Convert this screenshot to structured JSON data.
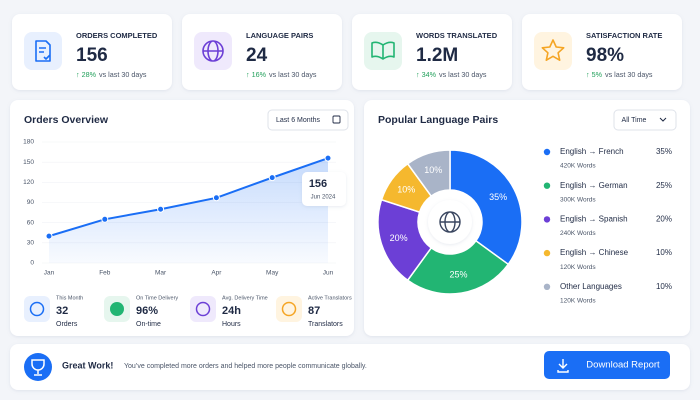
{
  "header_cards": [
    {
      "label": "ORDERS COMPLETED",
      "value": "156",
      "change": "↑ 28%",
      "compare": "vs last 30 days"
    },
    {
      "label": "LANGUAGE PAIRS",
      "value": "24",
      "change": "↑ 16%",
      "compare": "vs last 30 days"
    },
    {
      "label": "WORDS TRANSLATED",
      "value": "1.2M",
      "change": "↑ 34%",
      "compare": "vs last 30 days"
    },
    {
      "label": "SATISFACTION RATE",
      "value": "98%",
      "change": "↑ 5%",
      "compare": "vs last 30 days"
    }
  ],
  "chart_data": [
    {
      "type": "line",
      "title": "Orders Overview",
      "filter": "Last 6 Months",
      "categories": [
        "Jan",
        "Feb",
        "Mar",
        "Apr",
        "May",
        "Jun"
      ],
      "values": [
        40,
        65,
        80,
        97,
        127,
        156
      ],
      "color": "#1a6ef5",
      "ylim": [
        0,
        180
      ],
      "yticks": [
        0,
        30,
        60,
        90,
        120,
        150,
        180
      ],
      "grid": true,
      "tooltip_date": "Jun 2024"
    },
    {
      "type": "pie",
      "title": "Popular Language Pairs",
      "filter": "All Time",
      "categories": [
        "English → French",
        "English → German",
        "English → Spanish",
        "English → Chinese",
        "Other Languages"
      ],
      "values": [
        35,
        25,
        20,
        10,
        10
      ],
      "value_labels": [
        "35%",
        "25%",
        "20%",
        "10%",
        "10%"
      ],
      "colors": [
        "#1a6ef5",
        "#22b573",
        "#6c3fd6",
        "#f5b82e",
        "#a9b4c8"
      ],
      "details": [
        "420K Words",
        "300K Words",
        "240K Words",
        "120K Words",
        "120K Words"
      ]
    }
  ],
  "summary": [
    {
      "label": "This Month",
      "value": "32",
      "unit": "Orders"
    },
    {
      "label": "On Time Delivery",
      "value": "96%",
      "unit": "On-time"
    },
    {
      "label": "Avg. Delivery Time",
      "value": "24h",
      "unit": "Hours"
    },
    {
      "label": "Active Translators",
      "value": "87",
      "unit": "Translators"
    }
  ],
  "banner": {
    "title": "Great Work!",
    "message": "You’ve completed more orders and helped more people communicate globally.",
    "button": "Download Report"
  }
}
